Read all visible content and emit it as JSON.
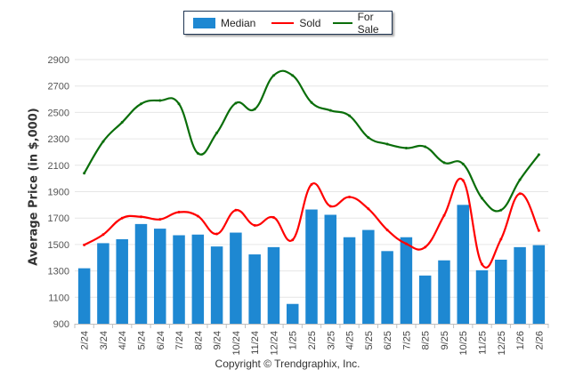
{
  "chart_data": {
    "type": "bar",
    "title": "",
    "xlabel": "",
    "ylabel": "Average Price (in $,000)",
    "ylim": [
      900,
      2900
    ],
    "yticks": [
      900,
      1100,
      1300,
      1500,
      1700,
      1900,
      2100,
      2300,
      2500,
      2700,
      2900
    ],
    "grid": true,
    "legend": "top-center",
    "categories": [
      "2/24",
      "3/24",
      "4/24",
      "5/24",
      "6/24",
      "7/24",
      "8/24",
      "9/24",
      "10/24",
      "11/24",
      "12/24",
      "1/25",
      "2/25",
      "3/25",
      "4/25",
      "5/25",
      "6/25",
      "7/25",
      "8/25",
      "9/25",
      "10/25",
      "11/25",
      "12/25",
      "1/26",
      "2/26"
    ],
    "series": [
      {
        "name": "Median",
        "type": "bar",
        "color": "#1E88D2",
        "values": [
          1320,
          1510,
          1540,
          1655,
          1620,
          1570,
          1575,
          1485,
          1590,
          1425,
          1480,
          1050,
          1765,
          1725,
          1555,
          1610,
          1450,
          1555,
          1265,
          1380,
          1800,
          1305,
          1385,
          1480,
          1495
        ]
      },
      {
        "name": "Sold",
        "type": "line",
        "color": "#FF0000",
        "values": [
          1497,
          1575,
          1700,
          1710,
          1690,
          1745,
          1715,
          1580,
          1760,
          1645,
          1705,
          1535,
          1955,
          1790,
          1860,
          1770,
          1610,
          1505,
          1480,
          1720,
          1985,
          1350,
          1540,
          1885,
          1605
        ]
      },
      {
        "name": "For Sale",
        "type": "line",
        "color": "#0A6E0A",
        "values": [
          2040,
          2280,
          2425,
          2565,
          2590,
          2565,
          2190,
          2345,
          2570,
          2525,
          2780,
          2780,
          2575,
          2515,
          2475,
          2310,
          2260,
          2230,
          2240,
          2120,
          2110,
          1850,
          1760,
          1990,
          2180
        ]
      }
    ]
  },
  "legend": {
    "items": [
      {
        "label": "Median",
        "color": "#1E88D2"
      },
      {
        "label": "Sold",
        "color": "#FF0000"
      },
      {
        "label": "For Sale",
        "color": "#0A6E0A"
      }
    ]
  },
  "footer": {
    "copyright": "Copyright © Trendgraphix, Inc."
  }
}
